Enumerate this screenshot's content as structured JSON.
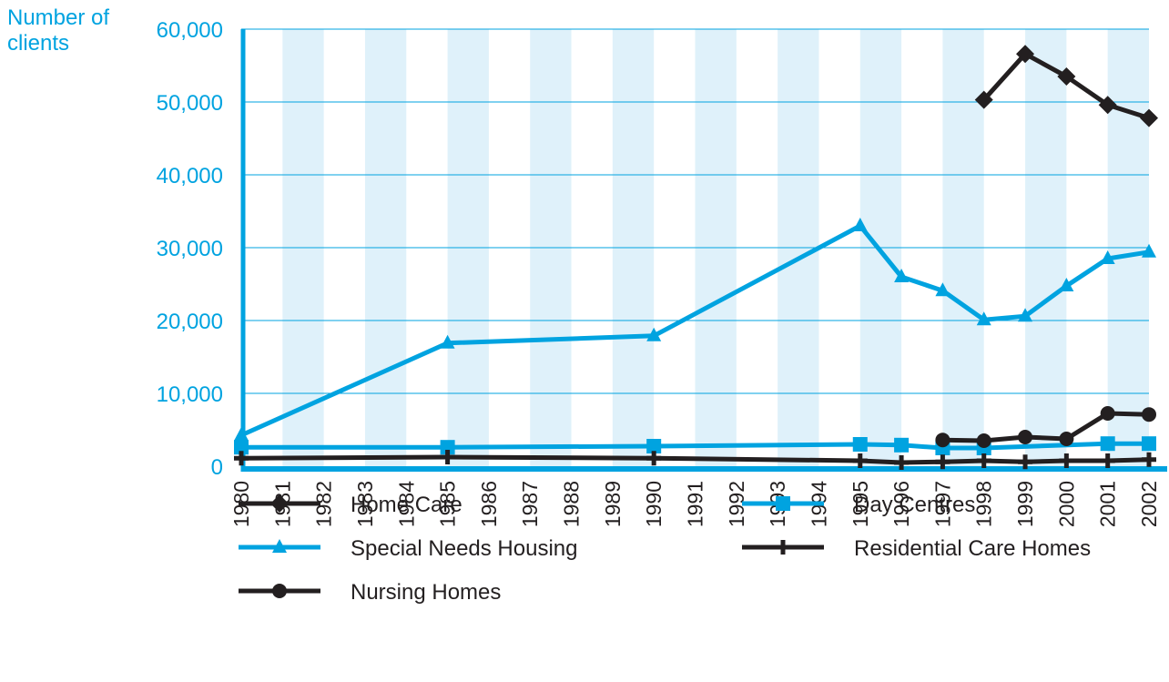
{
  "chart_data": {
    "type": "line",
    "y_label": "Number of clients",
    "xlim": [
      1980,
      2002
    ],
    "xticks": [
      1980,
      1981,
      1982,
      1983,
      1984,
      1985,
      1986,
      1987,
      1988,
      1989,
      1990,
      1991,
      1992,
      1993,
      1994,
      1995,
      1996,
      1997,
      1998,
      1999,
      2000,
      2001,
      2002
    ],
    "ylim": [
      0,
      60000
    ],
    "yticks": [
      0,
      {
        "value": 10000,
        "label": "10,000"
      },
      {
        "value": 20000,
        "label": "20,000"
      },
      {
        "value": 30000,
        "label": "30,000"
      },
      {
        "value": 40000,
        "label": "40,000"
      },
      {
        "value": 50000,
        "label": "50,000"
      },
      {
        "value": 60000,
        "label": "60,000"
      }
    ],
    "grid": true,
    "series": [
      {
        "name": "Home Care",
        "color": "#231f20",
        "marker": "diamond",
        "x": [
          1998,
          1999,
          2000,
          2001,
          2002
        ],
        "values": [
          50300,
          56600,
          53500,
          49600,
          47800
        ]
      },
      {
        "name": "Day Centres",
        "color": "#00a3e0",
        "marker": "square",
        "x": [
          1980,
          1985,
          1990,
          1995,
          1996,
          1997,
          1998,
          2001,
          2002
        ],
        "values": [
          2600,
          2600,
          2750,
          3000,
          2900,
          2500,
          2500,
          3100,
          3100
        ]
      },
      {
        "name": "Special Needs Housing",
        "color": "#00a3e0",
        "marker": "triangle",
        "x": [
          1980,
          1985,
          1990,
          1995,
          1996,
          1997,
          1998,
          1999,
          2000,
          2001,
          2002
        ],
        "values": [
          4250,
          16900,
          17900,
          33000,
          26000,
          24100,
          20100,
          20600,
          24750,
          28500,
          29400
        ]
      },
      {
        "name": "Residential Care Homes",
        "color": "#231f20",
        "marker": "plus",
        "x": [
          1980,
          1985,
          1990,
          1995,
          1996,
          1997,
          1998,
          1999,
          2000,
          2001,
          2002
        ],
        "values": [
          1100,
          1250,
          1100,
          750,
          500,
          600,
          750,
          600,
          750,
          750,
          900
        ]
      },
      {
        "name": "Nursing Homes",
        "color": "#231f20",
        "marker": "circle",
        "x": [
          1997,
          1998,
          1999,
          2000,
          2001,
          2002
        ],
        "values": [
          3600,
          3500,
          4000,
          3750,
          7250,
          7100
        ]
      }
    ]
  }
}
